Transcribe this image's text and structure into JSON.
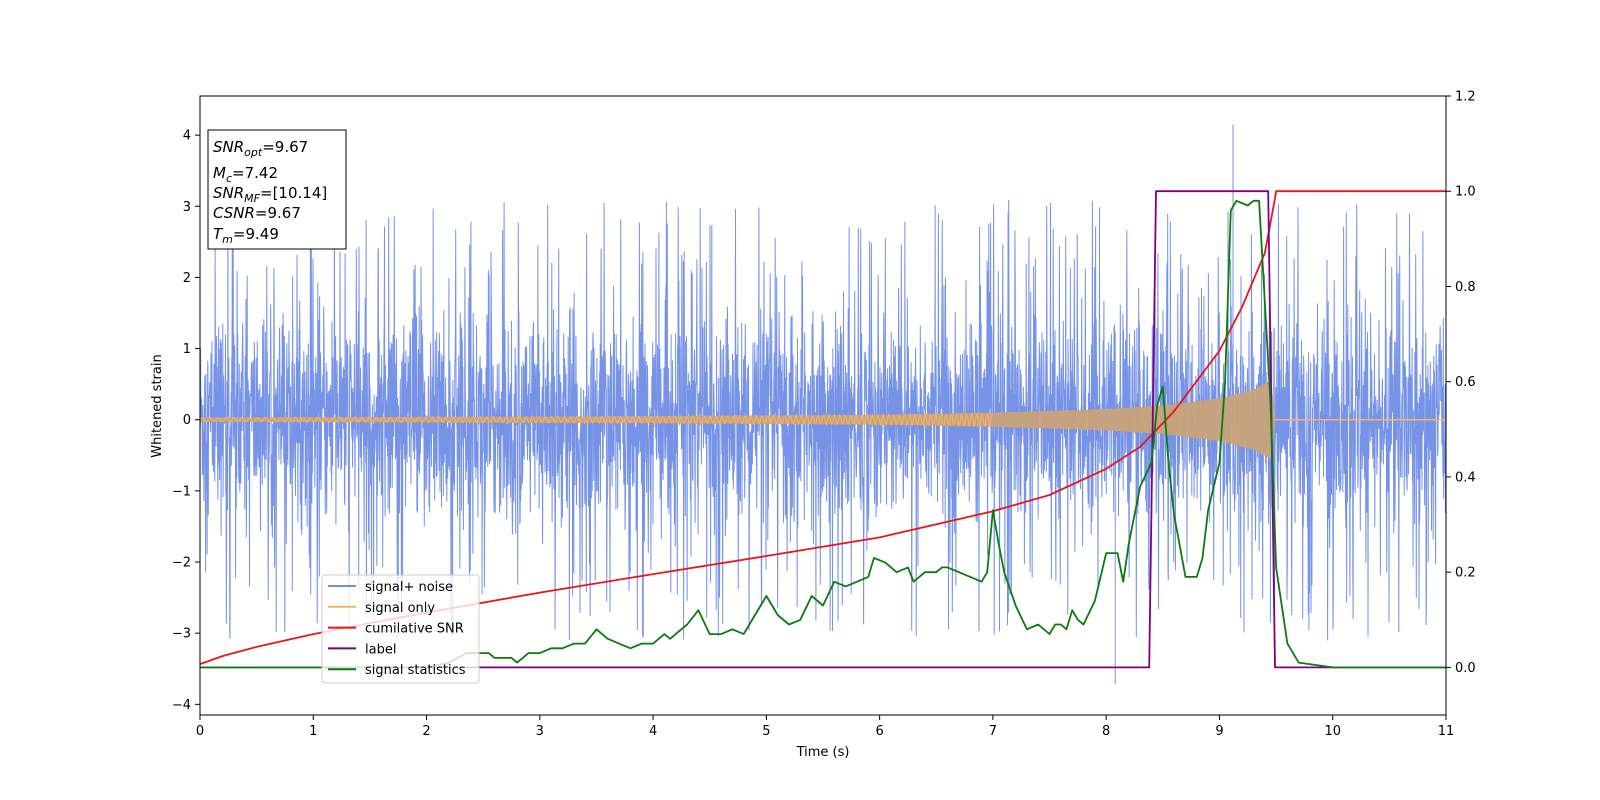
{
  "chart_data": {
    "type": "line",
    "xlabel": "Time (s)",
    "ylabel": "Whitened strain",
    "xlim": [
      0,
      11
    ],
    "ylim_left": [
      -4.15,
      4.55
    ],
    "ylim_right": [
      -0.1,
      1.2
    ],
    "x_ticks": [
      0,
      1,
      2,
      3,
      4,
      5,
      6,
      7,
      8,
      9,
      10,
      11
    ],
    "x_tick_labels": [
      "0",
      "1",
      "2",
      "3",
      "4",
      "5",
      "6",
      "7",
      "8",
      "9",
      "10",
      "11"
    ],
    "y_left_ticks": [
      -4,
      -3,
      -2,
      -1,
      0,
      1,
      2,
      3,
      4
    ],
    "y_left_tick_labels": [
      "−4",
      "−3",
      "−2",
      "−1",
      "0",
      "1",
      "2",
      "3",
      "4"
    ],
    "y_right_ticks": [
      0.0,
      0.2,
      0.4,
      0.6,
      0.8,
      1.0,
      1.2
    ],
    "y_right_tick_labels": [
      "0.0",
      "0.2",
      "0.4",
      "0.6",
      "0.8",
      "1.0",
      "1.2"
    ],
    "grid": false,
    "legend_position": "lower-left",
    "series": [
      {
        "name": "signal+ noise",
        "axis": "left",
        "color": "#6f8de6",
        "style": "noise",
        "t_range": [
          0,
          11
        ],
        "noise_band": [
          -2.5,
          2.5
        ],
        "extremes": {
          "max": [
            9.12,
            4.15
          ],
          "min": [
            8.08,
            -3.72
          ]
        }
      },
      {
        "name": "signal only",
        "axis": "left",
        "color": "#f5b366",
        "style": "chirp",
        "merger_time": 9.49,
        "envelope": {
          "t": [
            0,
            2,
            4,
            6,
            7,
            8,
            8.5,
            9,
            9.3,
            9.45,
            9.49
          ],
          "amp": [
            0.03,
            0.04,
            0.05,
            0.07,
            0.1,
            0.15,
            0.2,
            0.3,
            0.42,
            0.55,
            0.6
          ]
        }
      },
      {
        "name": "cumilative SNR",
        "axis": "right",
        "color": "#e8171b",
        "x": [
          0,
          0.2,
          0.5,
          1,
          1.5,
          2,
          2.5,
          3,
          4,
          5,
          6,
          7,
          7.5,
          8,
          8.3,
          8.6,
          9,
          9.2,
          9.4,
          9.49,
          9.5,
          11
        ],
        "y": [
          0.007,
          0.024,
          0.043,
          0.07,
          0.093,
          0.115,
          0.136,
          0.157,
          0.196,
          0.234,
          0.273,
          0.328,
          0.362,
          0.417,
          0.463,
          0.538,
          0.665,
          0.757,
          0.87,
          0.985,
          1.0,
          1.0
        ]
      },
      {
        "name": "label",
        "axis": "right",
        "color": "#800080",
        "x": [
          0,
          8.38,
          8.44,
          9.43,
          9.49,
          11
        ],
        "y": [
          0,
          0,
          1,
          1,
          0,
          0
        ]
      },
      {
        "name": "signal statistics",
        "axis": "right",
        "color": "#0e7a0e",
        "x": [
          0,
          1,
          2,
          2.2,
          2.35,
          2.55,
          2.6,
          2.75,
          2.8,
          2.9,
          3.0,
          3.1,
          3.2,
          3.3,
          3.4,
          3.5,
          3.6,
          3.7,
          3.8,
          3.9,
          4.0,
          4.1,
          4.15,
          4.2,
          4.3,
          4.4,
          4.5,
          4.6,
          4.7,
          4.8,
          4.9,
          5.0,
          5.1,
          5.2,
          5.3,
          5.4,
          5.5,
          5.6,
          5.7,
          5.8,
          5.9,
          5.95,
          6.05,
          6.15,
          6.25,
          6.3,
          6.4,
          6.5,
          6.55,
          6.6,
          6.7,
          6.8,
          6.9,
          6.95,
          7.0,
          7.05,
          7.1,
          7.2,
          7.3,
          7.4,
          7.5,
          7.55,
          7.6,
          7.65,
          7.7,
          7.75,
          7.8,
          7.9,
          8.0,
          8.1,
          8.15,
          8.2,
          8.3,
          8.4,
          8.45,
          8.5,
          8.55,
          8.6,
          8.7,
          8.8,
          8.85,
          8.9,
          9.0,
          9.05,
          9.1,
          9.15,
          9.25,
          9.3,
          9.35,
          9.45,
          9.5,
          9.6,
          9.7,
          10.0,
          11.0
        ],
        "y": [
          0.0,
          0.0,
          0.0,
          0.01,
          0.03,
          0.03,
          0.02,
          0.02,
          0.01,
          0.03,
          0.03,
          0.04,
          0.04,
          0.05,
          0.05,
          0.08,
          0.06,
          0.05,
          0.04,
          0.05,
          0.05,
          0.07,
          0.06,
          0.07,
          0.09,
          0.12,
          0.07,
          0.07,
          0.08,
          0.07,
          0.11,
          0.15,
          0.11,
          0.09,
          0.1,
          0.15,
          0.13,
          0.18,
          0.17,
          0.18,
          0.19,
          0.23,
          0.22,
          0.2,
          0.21,
          0.18,
          0.2,
          0.2,
          0.21,
          0.21,
          0.2,
          0.19,
          0.18,
          0.2,
          0.33,
          0.26,
          0.2,
          0.13,
          0.08,
          0.09,
          0.07,
          0.09,
          0.09,
          0.08,
          0.12,
          0.1,
          0.09,
          0.14,
          0.24,
          0.24,
          0.18,
          0.26,
          0.38,
          0.43,
          0.55,
          0.59,
          0.43,
          0.32,
          0.19,
          0.19,
          0.23,
          0.33,
          0.43,
          0.6,
          0.96,
          0.98,
          0.97,
          0.98,
          0.98,
          0.56,
          0.21,
          0.05,
          0.01,
          0.0,
          0.0
        ]
      }
    ],
    "legend": [
      "signal+ noise",
      "signal only",
      "cumilative SNR",
      "label",
      "signal statistics"
    ],
    "annotation": {
      "lines": [
        {
          "base": "SNR",
          "sub": "opt",
          "value": "=9.67"
        },
        {
          "base": "M",
          "sub": "c",
          "value": "=7.42"
        },
        {
          "base": "SNR",
          "sub": "MF",
          "value": "=[10.14]"
        },
        {
          "base": "CSNR",
          "sub": "",
          "value": "=9.67"
        },
        {
          "base": "T",
          "sub": "m",
          "value": "=9.49"
        }
      ]
    }
  }
}
